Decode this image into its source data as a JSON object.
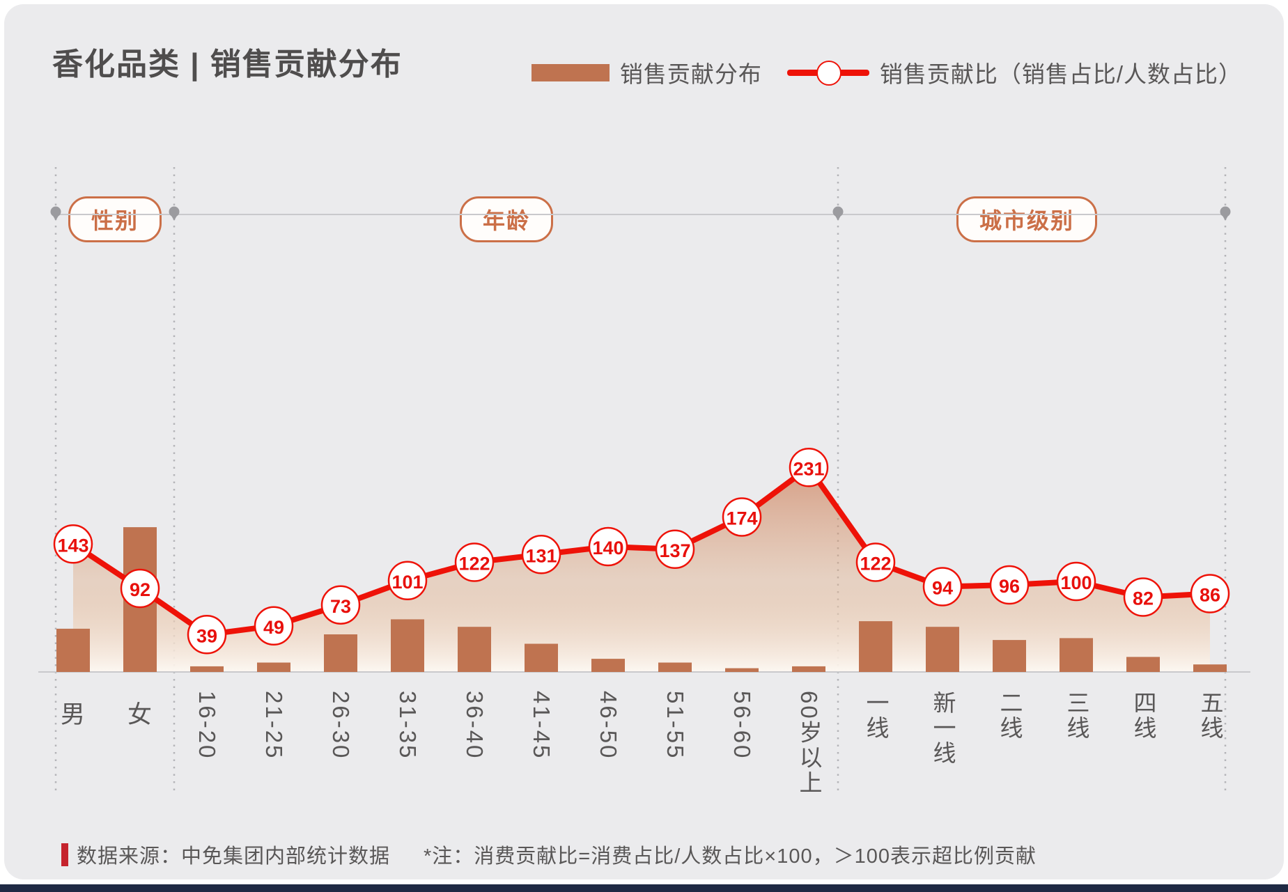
{
  "title": "香化品类 | 销售贡献分布",
  "legend": {
    "bar_label": "销售贡献分布",
    "line_label": "销售贡献比（销售占比/人数占比）"
  },
  "footer": {
    "source": "数据来源：中免集团内部统计数据",
    "note": "*注：消费贡献比=消费占比/人数占比×100，＞100表示超比例贡献"
  },
  "colors": {
    "bar": "#bf7350",
    "line": "#ee1208",
    "marker_text": "#e8100c",
    "accent_terracotta": "#cb6f47",
    "title_text": "#4f4d4d",
    "body_text": "#595757",
    "background": "#ebebed",
    "footer_accent": "#c5232d",
    "bottom_bar": "#1f2a44",
    "grid": "#c9c9cc",
    "dotted": "#b4b4b8"
  },
  "chart_data": {
    "type": "bar",
    "subtype": "combo bar + line with labeled markers",
    "title": "香化品类 | 销售贡献分布",
    "legend_position": "top-right",
    "grid": "off",
    "categories": [
      "男",
      "女",
      "16-20",
      "21-25",
      "26-30",
      "31-35",
      "36-40",
      "41-45",
      "46-50",
      "51-55",
      "56-60",
      "60岁以上",
      "一线",
      "新一线",
      "二线",
      "三线",
      "四线",
      "五线"
    ],
    "sections": [
      {
        "label": "性别",
        "categories": [
          "男",
          "女"
        ]
      },
      {
        "label": "年龄",
        "categories": [
          "16-20",
          "21-25",
          "26-30",
          "31-35",
          "36-40",
          "41-45",
          "46-50",
          "51-55",
          "56-60",
          "60岁以上"
        ]
      },
      {
        "label": "城市级别",
        "categories": [
          "一线",
          "新一线",
          "二线",
          "三线",
          "四线",
          "五线"
        ]
      }
    ],
    "series": [
      {
        "name": "销售贡献分布",
        "type": "bar",
        "unit": "% (estimated, axis unlabeled)",
        "values": [
          23,
          77,
          3,
          5,
          20,
          28,
          24,
          15,
          7,
          5,
          2,
          3,
          27,
          24,
          17,
          18,
          8,
          4
        ]
      },
      {
        "name": "销售贡献比（销售占比/人数占比）",
        "type": "line",
        "values_labeled": true,
        "values": [
          143,
          92,
          39,
          49,
          73,
          101,
          122,
          131,
          140,
          137,
          174,
          231,
          122,
          94,
          96,
          100,
          82,
          86
        ]
      }
    ]
  }
}
